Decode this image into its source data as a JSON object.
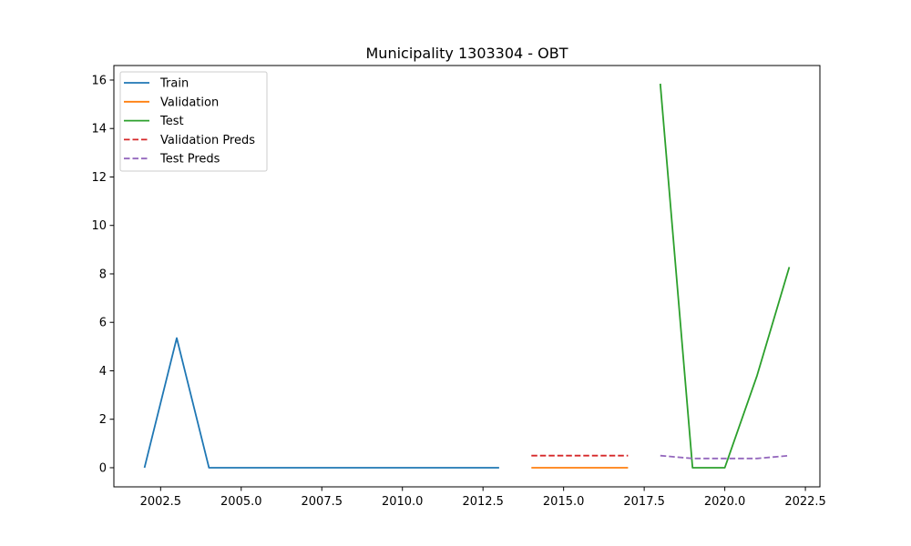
{
  "chart_data": {
    "type": "line",
    "title": "Municipality 1303304 - OBT",
    "xlabel": "",
    "ylabel": "",
    "xlim": [
      2001.05,
      2022.95
    ],
    "ylim": [
      -0.79,
      16.6
    ],
    "xticks": [
      2002.5,
      2005.0,
      2007.5,
      2010.0,
      2012.5,
      2015.0,
      2017.5,
      2020.0,
      2022.5
    ],
    "xtick_labels": [
      "2002.5",
      "2005.0",
      "2007.5",
      "2010.0",
      "2012.5",
      "2015.0",
      "2017.5",
      "2020.0",
      "2022.5"
    ],
    "yticks": [
      0,
      2,
      4,
      6,
      8,
      10,
      12,
      14,
      16
    ],
    "ytick_labels": [
      "0",
      "2",
      "4",
      "6",
      "8",
      "10",
      "12",
      "14",
      "16"
    ],
    "grid": false,
    "legend_position": "top-left",
    "series": [
      {
        "name": "Train",
        "color": "#1f77b4",
        "dash": "solid",
        "x": [
          2002,
          2003,
          2004,
          2005,
          2006,
          2007,
          2008,
          2009,
          2010,
          2011,
          2012,
          2013
        ],
        "y": [
          0,
          5.35,
          0,
          0,
          0,
          0,
          0,
          0,
          0,
          0,
          0,
          0
        ]
      },
      {
        "name": "Validation",
        "color": "#ff7f0e",
        "dash": "solid",
        "x": [
          2014,
          2015,
          2016,
          2017
        ],
        "y": [
          0,
          0,
          0,
          0
        ]
      },
      {
        "name": "Test",
        "color": "#2ca02c",
        "dash": "solid",
        "x": [
          2018,
          2019,
          2020,
          2021,
          2022
        ],
        "y": [
          15.85,
          0,
          0,
          3.8,
          8.28
        ]
      },
      {
        "name": "Validation Preds",
        "color": "#d62728",
        "dash": "dashed",
        "x": [
          2014,
          2015,
          2016,
          2017
        ],
        "y": [
          0.5,
          0.5,
          0.5,
          0.5
        ]
      },
      {
        "name": "Test Preds",
        "color": "#9467bd",
        "dash": "dashed",
        "x": [
          2018,
          2019,
          2020,
          2021,
          2022
        ],
        "y": [
          0.5,
          0.38,
          0.38,
          0.38,
          0.5
        ]
      }
    ]
  }
}
